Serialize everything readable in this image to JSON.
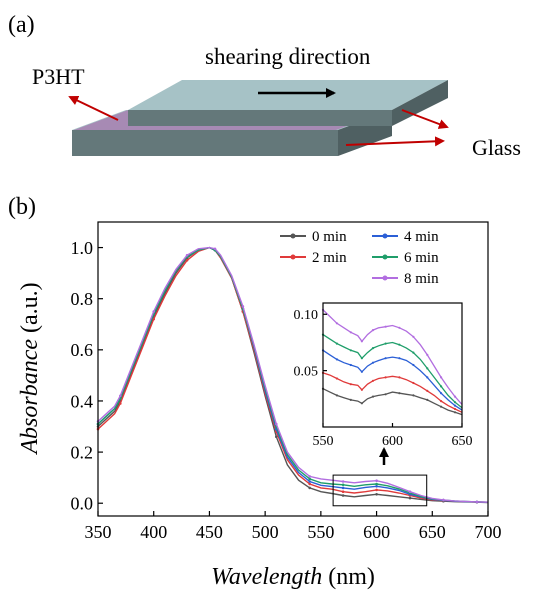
{
  "panel_a": {
    "label": "(a)",
    "shear_label": "shearing direction",
    "film_label": "P3HT",
    "substrate_label": "Glass",
    "colors": {
      "glass_top": "#a6c2c6",
      "glass_side": "#64787a",
      "film": "#a78ab4",
      "arrow": "#c00000"
    }
  },
  "panel_b": {
    "label": "(b)"
  },
  "chart_data": [
    {
      "type": "line",
      "xlabel_italic": "Wavelength",
      "xlabel_unit": "(nm)",
      "ylabel_italic": "Absorbance",
      "ylabel_unit": "(a.u.)",
      "xlim": [
        350,
        700
      ],
      "ylim": [
        -0.05,
        1.1
      ],
      "xticks": [
        350,
        400,
        450,
        500,
        550,
        600,
        650,
        700
      ],
      "yticks": [
        0.0,
        0.2,
        0.4,
        0.6,
        0.8,
        1.0
      ],
      "ytick_labels": [
        "0.0",
        "0.2",
        "0.4",
        "0.6",
        "0.8",
        "1.0"
      ],
      "legend_position": "top-right",
      "grid": false,
      "inset_box": {
        "x": [
          561,
          645
        ],
        "y": [
          -0.01,
          0.11
        ]
      },
      "x": [
        350,
        360,
        365,
        370,
        380,
        390,
        400,
        410,
        420,
        430,
        440,
        450,
        455,
        460,
        470,
        480,
        490,
        500,
        510,
        520,
        530,
        540,
        550,
        560,
        570,
        580,
        590,
        600,
        610,
        620,
        630,
        640,
        650,
        660,
        670,
        680,
        690,
        700
      ],
      "series": [
        {
          "name": "0 min",
          "color": "#555555",
          "values": [
            0.3,
            0.34,
            0.36,
            0.4,
            0.51,
            0.62,
            0.73,
            0.82,
            0.9,
            0.96,
            0.99,
            1.0,
            0.99,
            0.96,
            0.88,
            0.75,
            0.59,
            0.42,
            0.26,
            0.15,
            0.09,
            0.06,
            0.045,
            0.038,
            0.03,
            0.025,
            0.03,
            0.035,
            0.03,
            0.025,
            0.02,
            0.015,
            0.01,
            0.008,
            0.006,
            0.005,
            0.004,
            0.003
          ]
        },
        {
          "name": "2 min",
          "color": "#e03a3a",
          "values": [
            0.29,
            0.33,
            0.35,
            0.39,
            0.5,
            0.61,
            0.72,
            0.81,
            0.89,
            0.95,
            0.985,
            1.0,
            0.99,
            0.96,
            0.88,
            0.75,
            0.6,
            0.43,
            0.28,
            0.17,
            0.11,
            0.075,
            0.06,
            0.055,
            0.045,
            0.04,
            0.045,
            0.052,
            0.048,
            0.04,
            0.03,
            0.02,
            0.013,
            0.01,
            0.008,
            0.006,
            0.005,
            0.004
          ]
        },
        {
          "name": "4 min",
          "color": "#2b5fd6",
          "values": [
            0.31,
            0.35,
            0.37,
            0.41,
            0.52,
            0.63,
            0.74,
            0.83,
            0.91,
            0.965,
            0.99,
            1.0,
            0.99,
            0.965,
            0.885,
            0.76,
            0.61,
            0.44,
            0.29,
            0.18,
            0.12,
            0.085,
            0.07,
            0.065,
            0.06,
            0.055,
            0.062,
            0.066,
            0.06,
            0.05,
            0.035,
            0.024,
            0.015,
            0.011,
            0.008,
            0.006,
            0.005,
            0.004
          ]
        },
        {
          "name": "6 min",
          "color": "#1f9e6a",
          "values": [
            0.31,
            0.35,
            0.37,
            0.41,
            0.52,
            0.63,
            0.74,
            0.83,
            0.91,
            0.965,
            0.99,
            1.0,
            0.99,
            0.965,
            0.885,
            0.76,
            0.615,
            0.45,
            0.3,
            0.19,
            0.13,
            0.095,
            0.08,
            0.075,
            0.072,
            0.066,
            0.072,
            0.075,
            0.068,
            0.056,
            0.04,
            0.026,
            0.017,
            0.012,
            0.009,
            0.007,
            0.005,
            0.004
          ]
        },
        {
          "name": "8 min",
          "color": "#b26ee0",
          "values": [
            0.32,
            0.36,
            0.38,
            0.42,
            0.53,
            0.64,
            0.75,
            0.84,
            0.915,
            0.97,
            0.995,
            1.0,
            0.995,
            0.97,
            0.89,
            0.77,
            0.62,
            0.46,
            0.31,
            0.2,
            0.14,
            0.105,
            0.095,
            0.09,
            0.085,
            0.08,
            0.085,
            0.088,
            0.078,
            0.062,
            0.045,
            0.03,
            0.019,
            0.013,
            0.009,
            0.007,
            0.005,
            0.004
          ]
        }
      ]
    },
    {
      "type": "line",
      "role": "inset",
      "xlim": [
        550,
        650
      ],
      "ylim": [
        0.0,
        0.11
      ],
      "xticks": [
        550,
        600,
        650
      ],
      "yticks": [
        0.05,
        0.1
      ],
      "ytick_labels": [
        "0.05",
        "0.10"
      ],
      "x": [
        550,
        555,
        560,
        565,
        570,
        575,
        578,
        582,
        586,
        590,
        595,
        600,
        605,
        610,
        615,
        620,
        625,
        630,
        635,
        640,
        645,
        650
      ],
      "series": [
        {
          "name": "0 min",
          "color": "#555555",
          "values": [
            0.034,
            0.031,
            0.028,
            0.026,
            0.024,
            0.023,
            0.021,
            0.025,
            0.027,
            0.028,
            0.029,
            0.031,
            0.03,
            0.029,
            0.028,
            0.026,
            0.024,
            0.021,
            0.018,
            0.015,
            0.013,
            0.011
          ]
        },
        {
          "name": "2 min",
          "color": "#e03a3a",
          "values": [
            0.048,
            0.046,
            0.043,
            0.04,
            0.038,
            0.037,
            0.033,
            0.038,
            0.041,
            0.043,
            0.044,
            0.045,
            0.044,
            0.042,
            0.039,
            0.036,
            0.032,
            0.028,
            0.023,
            0.019,
            0.016,
            0.013
          ]
        },
        {
          "name": "4 min",
          "color": "#2b5fd6",
          "values": [
            0.068,
            0.064,
            0.06,
            0.057,
            0.055,
            0.053,
            0.049,
            0.054,
            0.057,
            0.059,
            0.061,
            0.062,
            0.061,
            0.059,
            0.055,
            0.05,
            0.044,
            0.037,
            0.03,
            0.024,
            0.019,
            0.015
          ]
        },
        {
          "name": "6 min",
          "color": "#1f9e6a",
          "values": [
            0.082,
            0.078,
            0.074,
            0.071,
            0.068,
            0.066,
            0.061,
            0.066,
            0.07,
            0.072,
            0.074,
            0.075,
            0.073,
            0.07,
            0.066,
            0.06,
            0.052,
            0.044,
            0.036,
            0.028,
            0.022,
            0.017
          ]
        },
        {
          "name": "8 min",
          "color": "#b26ee0",
          "values": [
            0.104,
            0.098,
            0.092,
            0.088,
            0.084,
            0.081,
            0.076,
            0.082,
            0.086,
            0.088,
            0.089,
            0.09,
            0.088,
            0.085,
            0.08,
            0.073,
            0.064,
            0.054,
            0.044,
            0.035,
            0.027,
            0.02
          ]
        }
      ]
    }
  ]
}
